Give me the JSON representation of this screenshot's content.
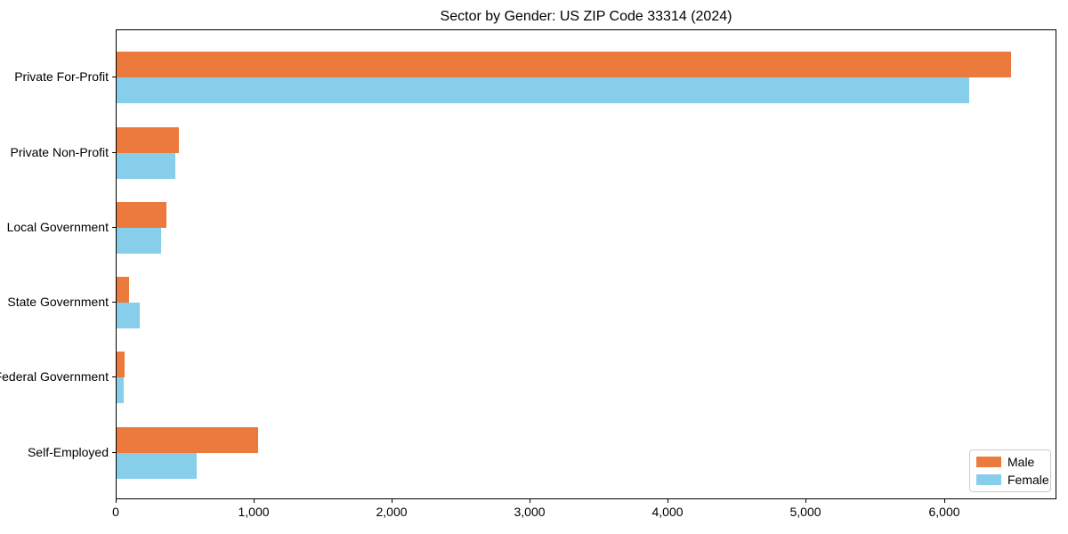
{
  "chart_data": {
    "type": "bar",
    "orientation": "horizontal",
    "title": "Sector by Gender: US ZIP Code 33314 (2024)",
    "categories": [
      "Private For-Profit",
      "Private Non-Profit",
      "Local Government",
      "State Government",
      "Federal Government",
      "Self-Employed"
    ],
    "series": [
      {
        "name": "Male",
        "color": "#EC7A3C",
        "values": [
          6490,
          450,
          360,
          90,
          60,
          1030
        ]
      },
      {
        "name": "Female",
        "color": "#87CEEB",
        "values": [
          6190,
          425,
          320,
          170,
          50,
          580
        ]
      }
    ],
    "xlabel": "",
    "ylabel": "",
    "xlim": [
      0,
      6815
    ],
    "x_ticks": [
      0,
      1000,
      2000,
      3000,
      4000,
      5000,
      6000
    ],
    "x_tick_labels": [
      "0",
      "1,000",
      "2,000",
      "3,000",
      "4,000",
      "5,000",
      "6,000"
    ],
    "grid": false,
    "legend": {
      "position": "lower right",
      "entries": [
        "Male",
        "Female"
      ]
    }
  }
}
